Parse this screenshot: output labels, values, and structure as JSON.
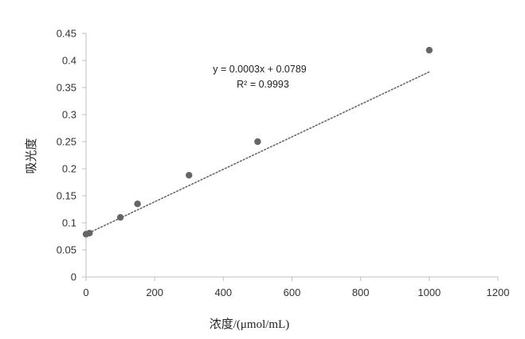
{
  "chart_data": {
    "type": "scatter",
    "xlabel": "浓度/(μmol/mL)",
    "ylabel": "吸光度",
    "xlim": [
      0,
      1200
    ],
    "ylim": [
      0,
      0.45
    ],
    "x_ticks": [
      "0",
      "200",
      "400",
      "600",
      "800",
      "1000",
      "1200"
    ],
    "y_ticks": [
      "0",
      "0.05",
      "0.1",
      "0.15",
      "0.2",
      "0.25",
      "0.3",
      "0.35",
      "0.4",
      "0.45"
    ],
    "series": [
      {
        "x": [
          0,
          10,
          100,
          150,
          300,
          500,
          1000
        ],
        "y": [
          0.079,
          0.081,
          0.11,
          0.135,
          0.188,
          0.25,
          0.419
        ]
      }
    ],
    "trendline": {
      "type": "linear",
      "style": "dotted",
      "slope": 0.0003,
      "intercept": 0.0789,
      "x_range": [
        0,
        1000
      ]
    },
    "annotations": {
      "equation": "y = 0.0003x + 0.0789",
      "r_squared": "R² = 0.9993"
    },
    "grid": false,
    "legend": "none",
    "colors": {
      "marker": "#666666",
      "trendline": "#666666",
      "axis": "#bfbfbf"
    }
  }
}
